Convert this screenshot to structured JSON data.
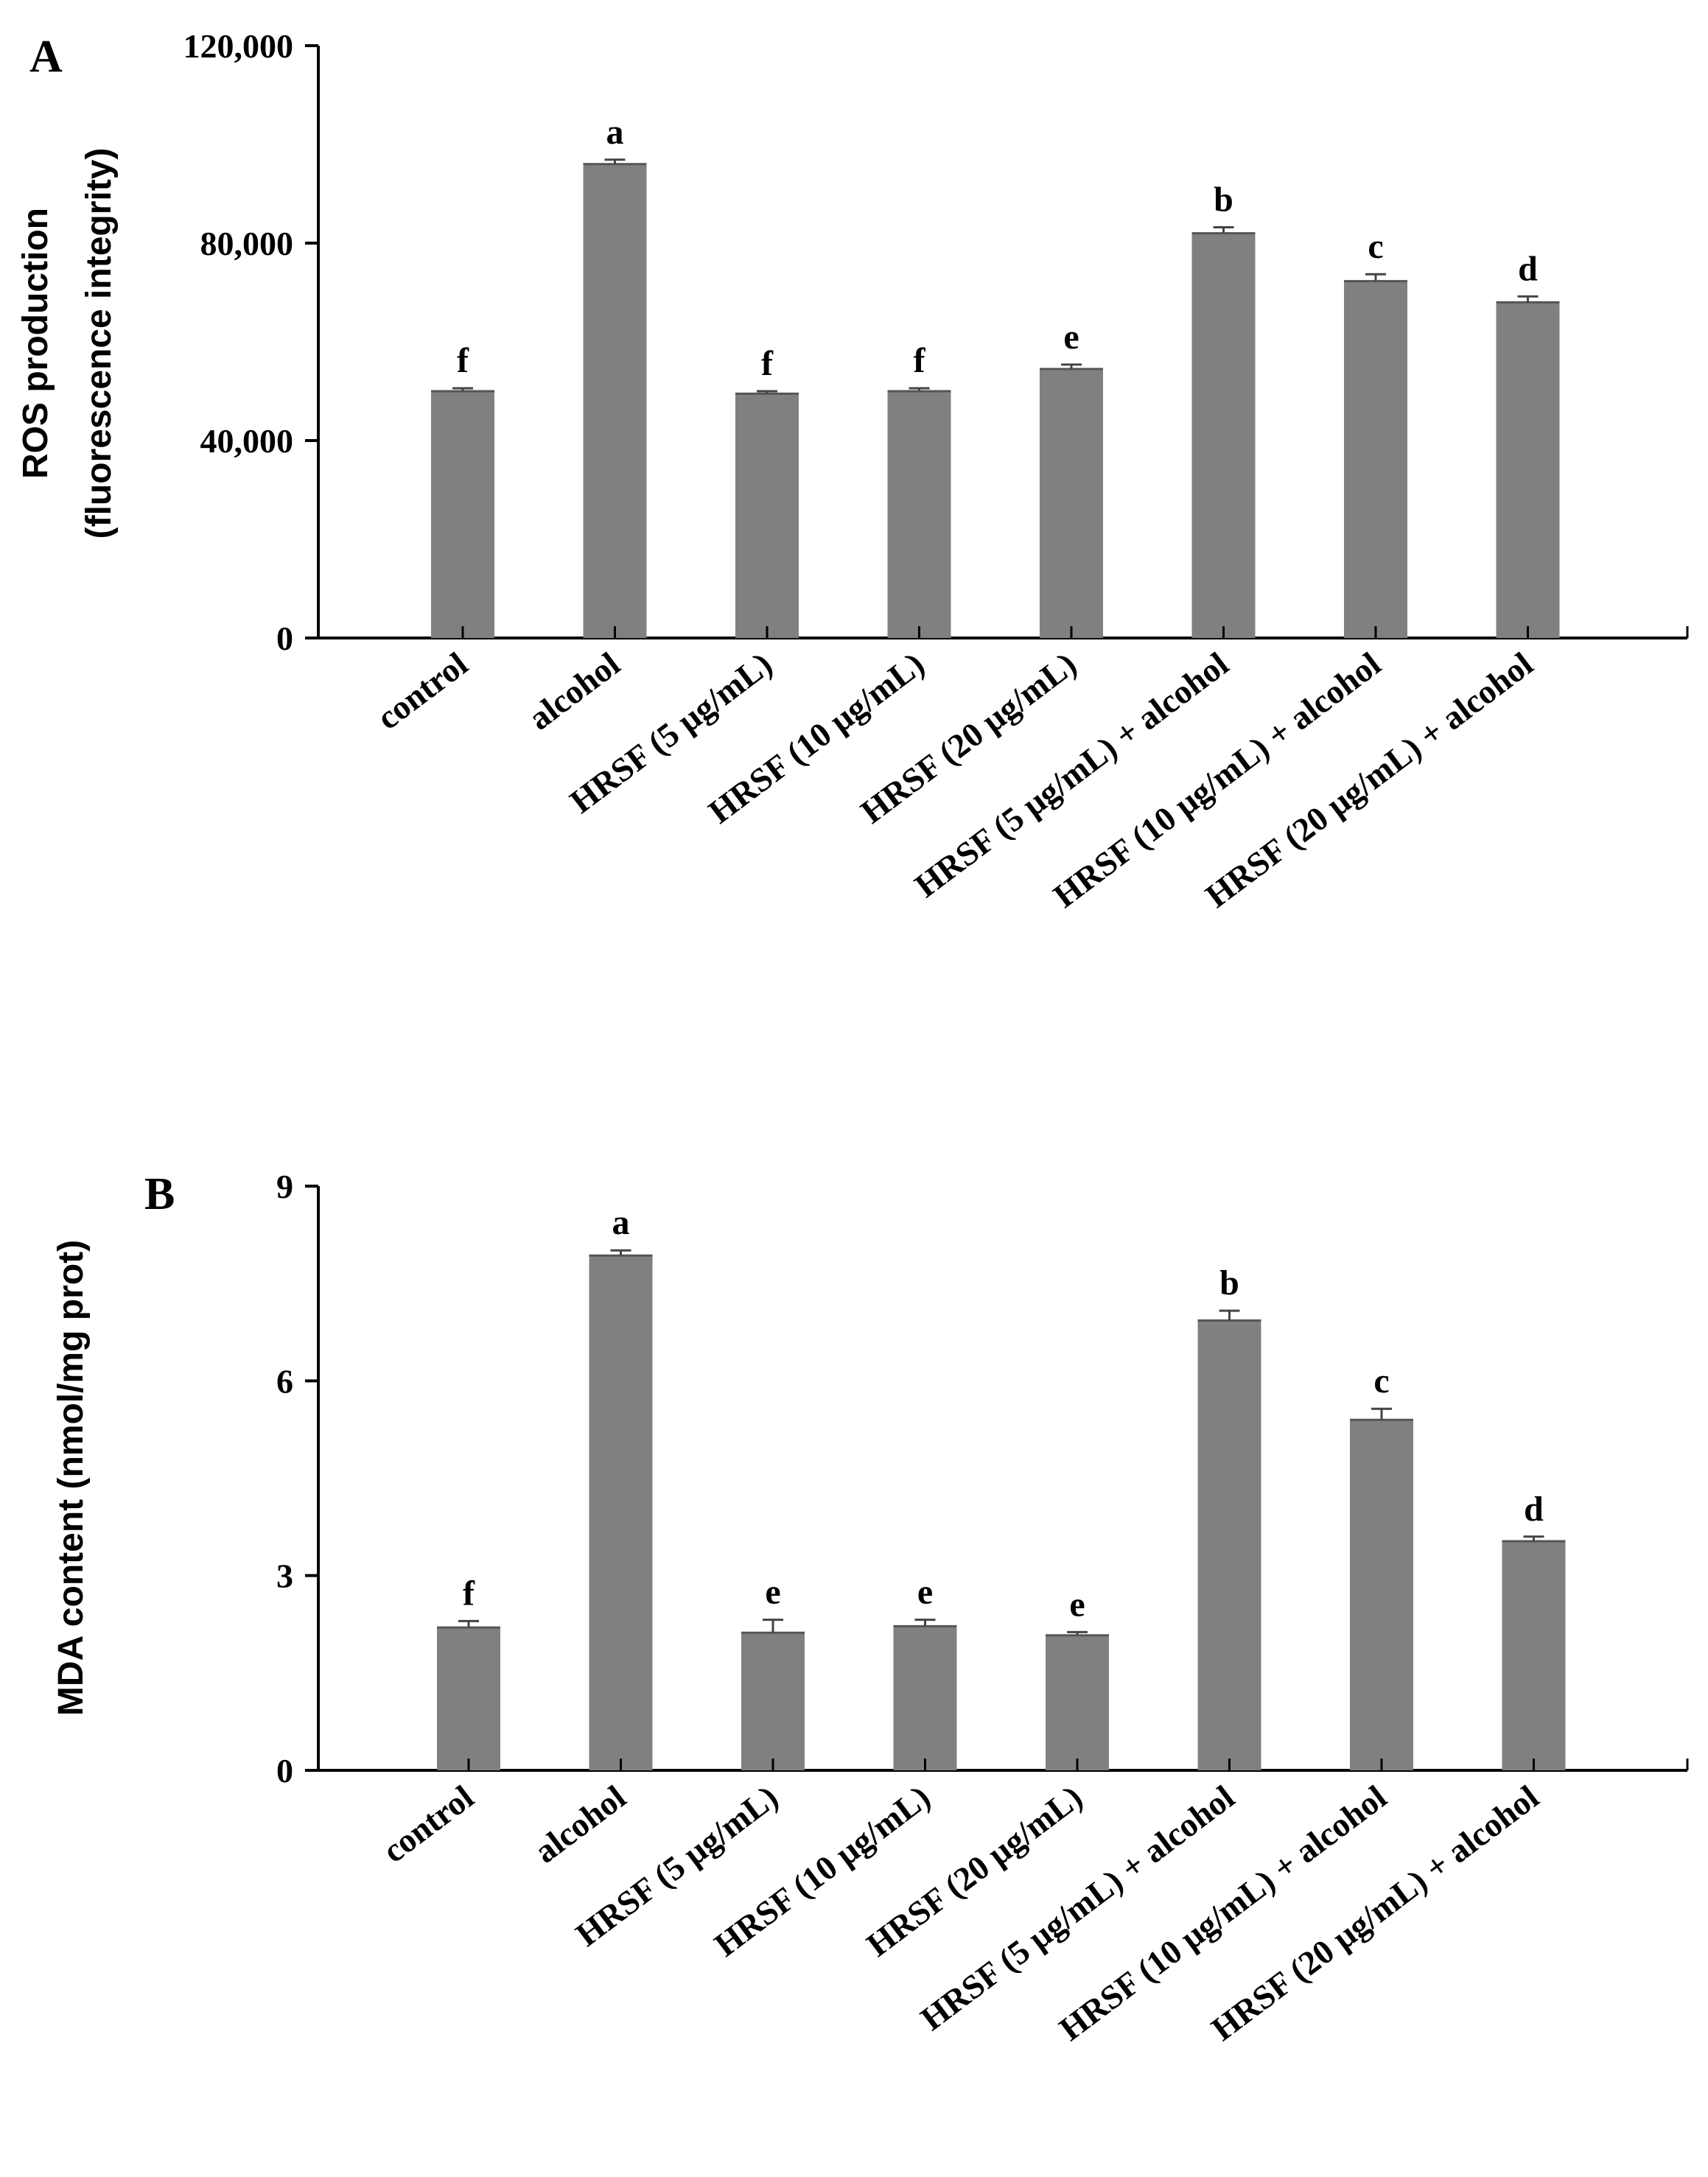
{
  "figure_title": "",
  "bar_color": "#808080",
  "chart_data": [
    {
      "type": "bar",
      "panel": "A",
      "title": "",
      "xlabel": "",
      "ylabel_lines": [
        "ROS production",
        "(fluorescence integrity)"
      ],
      "categories": [
        "control",
        "alcohol",
        "HRSF (5 μg/mL)",
        "HRSF (10 μg/mL)",
        "HRSF (20 μg/mL)",
        "HRSF (5 μg/mL) + alcohol",
        "HRSF (10 μg/mL) + alcohol",
        "HRSF (20 μg/mL) + alcohol"
      ],
      "values": [
        50000,
        96000,
        49500,
        50000,
        54500,
        82000,
        72300,
        68000
      ],
      "errors": [
        600,
        900,
        500,
        600,
        900,
        1200,
        1400,
        1200
      ],
      "letters": [
        "f",
        "a",
        "f",
        "f",
        "e",
        "b",
        "c",
        "d"
      ],
      "ylim": [
        0,
        120000
      ],
      "yticks": [
        0,
        40000,
        80000,
        120000
      ],
      "ytick_labels": [
        "0",
        "40,000",
        "80,000",
        "120,000"
      ],
      "grid": false,
      "legend": "none"
    },
    {
      "type": "bar",
      "panel": "B",
      "title": "",
      "xlabel": "",
      "ylabel_lines": [
        "MDA content (nmol/mg prot)"
      ],
      "categories": [
        "control",
        "alcohol",
        "HRSF (5 μg/mL)",
        "HRSF (10 μg/mL)",
        "HRSF (20 μg/mL)",
        "HRSF (5 μg/mL) + alcohol",
        "HRSF (10 μg/mL) + alcohol",
        "HRSF (20 μg/mL) + alcohol"
      ],
      "values": [
        2.2,
        7.93,
        2.12,
        2.22,
        2.08,
        6.93,
        5.4,
        3.53
      ],
      "errors": [
        0.1,
        0.08,
        0.2,
        0.1,
        0.05,
        0.15,
        0.17,
        0.07
      ],
      "letters": [
        "f",
        "a",
        "e",
        "e",
        "e",
        "b",
        "c",
        "d"
      ],
      "ylim": [
        0,
        9
      ],
      "yticks": [
        0,
        3,
        6,
        9
      ],
      "ytick_labels": [
        "0",
        "3",
        "6",
        "9"
      ],
      "grid": false,
      "legend": "none"
    }
  ]
}
